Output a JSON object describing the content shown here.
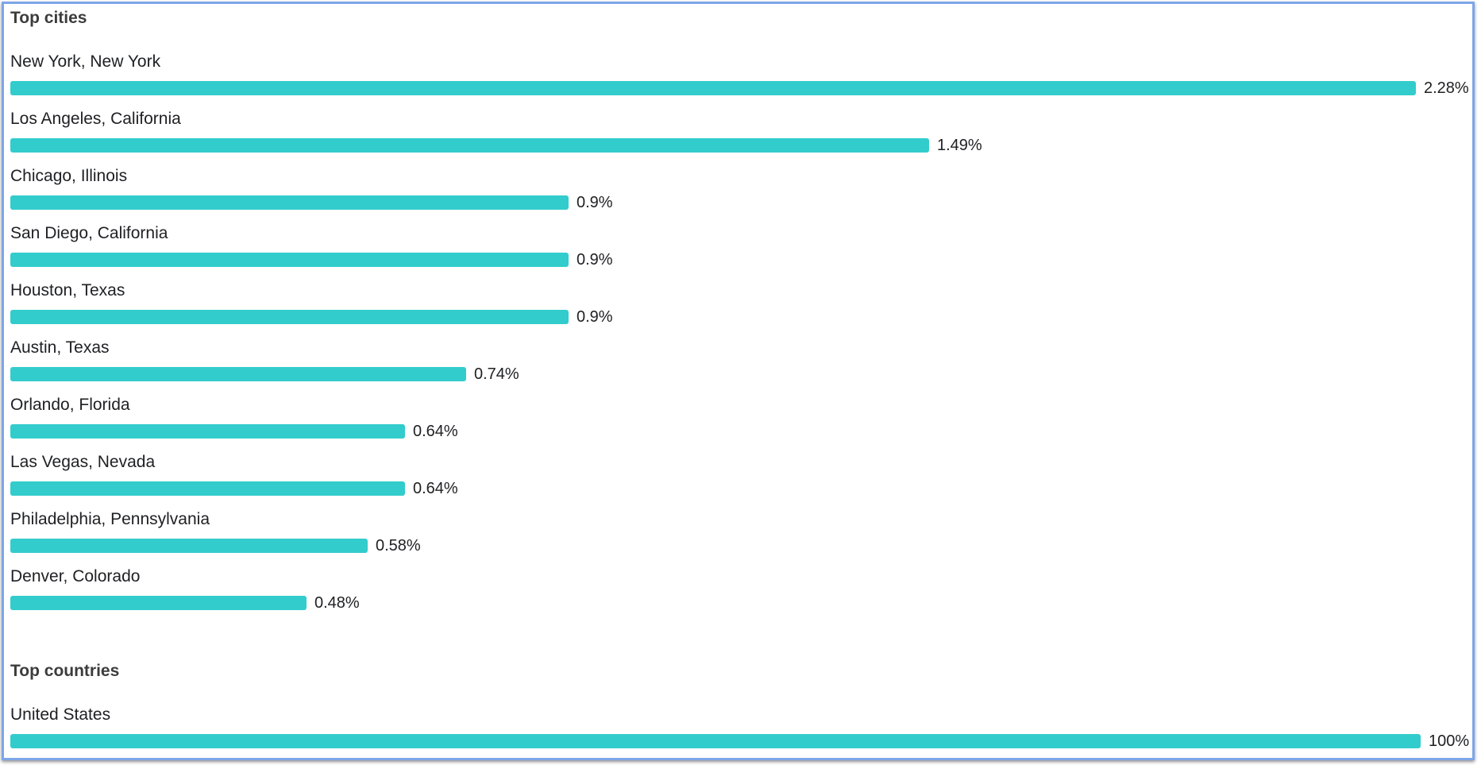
{
  "colors": {
    "bar": "#33cccc",
    "border": "#7ea6e8"
  },
  "cities": {
    "title": "Top cities",
    "items": [
      {
        "label": "New York, New York",
        "value": "2.28%",
        "pct": 2.28
      },
      {
        "label": "Los Angeles, California",
        "value": "1.49%",
        "pct": 1.49
      },
      {
        "label": "Chicago, Illinois",
        "value": "0.9%",
        "pct": 0.9
      },
      {
        "label": "San Diego, California",
        "value": "0.9%",
        "pct": 0.9
      },
      {
        "label": "Houston, Texas",
        "value": "0.9%",
        "pct": 0.9
      },
      {
        "label": "Austin, Texas",
        "value": "0.74%",
        "pct": 0.74
      },
      {
        "label": "Orlando, Florida",
        "value": "0.64%",
        "pct": 0.64
      },
      {
        "label": "Las Vegas, Nevada",
        "value": "0.64%",
        "pct": 0.64
      },
      {
        "label": "Philadelphia, Pennsylvania",
        "value": "0.58%",
        "pct": 0.58
      },
      {
        "label": "Denver, Colorado",
        "value": "0.48%",
        "pct": 0.48
      }
    ]
  },
  "countries": {
    "title": "Top countries",
    "items": [
      {
        "label": "United States",
        "value": "100%",
        "pct": 100
      }
    ]
  }
}
